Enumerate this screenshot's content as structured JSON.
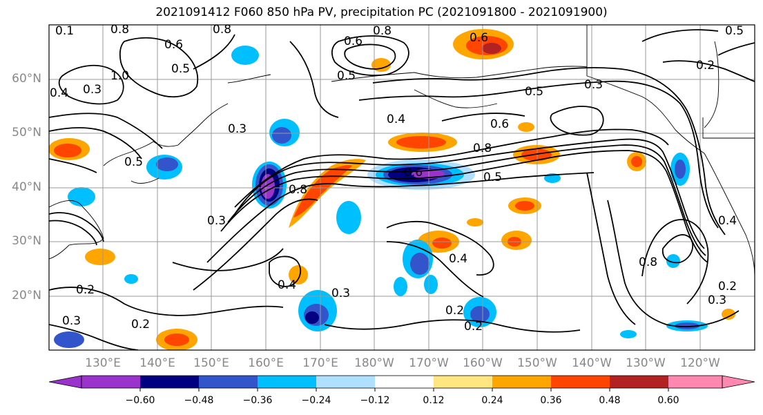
{
  "title": "2021091412 F060 850 hPa PV, precipitation PC (2021091800 - 2021091900)",
  "lat_labels": [
    "60°N",
    "50°N",
    "40°N",
    "30°N",
    "20°N"
  ],
  "lon_labels": [
    "130°E",
    "140°E",
    "150°E",
    "160°E",
    "170°E",
    "180°W",
    "170°W",
    "160°W",
    "150°W",
    "140°W",
    "130°W",
    "120°W"
  ],
  "colorbar": {
    "ticks": [
      "−0.60",
      "−0.48",
      "−0.36",
      "−0.24",
      "−0.12",
      "0.12",
      "0.24",
      "0.36",
      "0.48",
      "0.60"
    ],
    "colors": [
      "#9933cc",
      "#000080",
      "#3355cc",
      "#00bfff",
      "#b0e0ff",
      "#ffffff",
      "#ffe680",
      "#ffa500",
      "#ff4500",
      "#b22222",
      "#ff88b0"
    ]
  },
  "contour_labels": [
    "0.2",
    "0.3",
    "0.4",
    "0.5",
    "0.6",
    "0.8",
    "1.0"
  ],
  "pv_label_values": [
    "0.1",
    "0.8",
    "0.8",
    "0.6",
    "0.5",
    "0.6",
    "0.5",
    "0.8",
    "0.6",
    "0.5",
    "1.0",
    "0.4",
    "0.3",
    "0.5",
    "0.3",
    "0.4",
    "0.6",
    "0.8",
    "0.3",
    "0.3",
    "0.4",
    "0.6",
    "0.8",
    "0.5",
    "0.5",
    "0.3",
    "0.4",
    "0.2",
    "0.2",
    "0.3",
    "0.4",
    "0.8",
    "0.2",
    "0.2",
    "0.2",
    "0.3",
    "0.2"
  ],
  "colors": {
    "land": "#000000",
    "grid": "#999999",
    "contour": "#000000"
  }
}
